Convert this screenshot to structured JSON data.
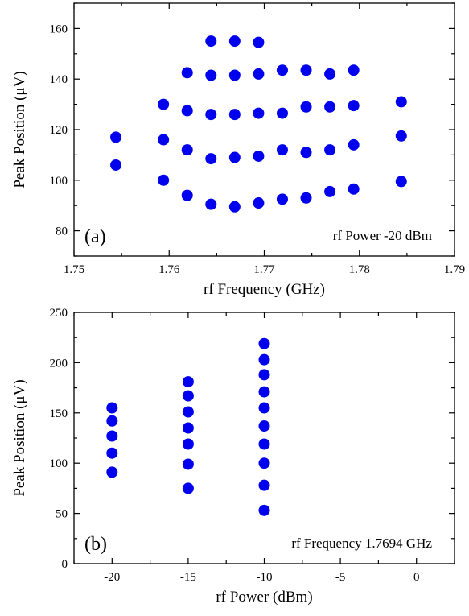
{
  "chart_data": [
    {
      "type": "scatter",
      "panel_label": "(a)",
      "annotation": "rf  Power -20 dBm",
      "xlabel": "rf Frequency (GHz)",
      "ylabel": "Peak Position (μV)",
      "xlim": [
        1.75,
        1.79
      ],
      "ylim": [
        70,
        170
      ],
      "xticks": [
        1.75,
        1.76,
        1.77,
        1.78,
        1.79
      ],
      "xtick_labels": [
        "1.75",
        "1.76",
        "1.77",
        "1.78",
        "1.79"
      ],
      "yticks": [
        80,
        100,
        120,
        140,
        160
      ],
      "ytick_labels": [
        "80",
        "100",
        "120",
        "140",
        "160"
      ],
      "color": "#0000ee",
      "points": [
        {
          "x": 1.7544,
          "y": 117
        },
        {
          "x": 1.7544,
          "y": 106
        },
        {
          "x": 1.7594,
          "y": 130
        },
        {
          "x": 1.7594,
          "y": 116
        },
        {
          "x": 1.7594,
          "y": 100
        },
        {
          "x": 1.7619,
          "y": 142.5
        },
        {
          "x": 1.7619,
          "y": 127.5
        },
        {
          "x": 1.7619,
          "y": 112
        },
        {
          "x": 1.7619,
          "y": 94
        },
        {
          "x": 1.7644,
          "y": 155
        },
        {
          "x": 1.7644,
          "y": 141.5
        },
        {
          "x": 1.7644,
          "y": 126
        },
        {
          "x": 1.7644,
          "y": 108.5
        },
        {
          "x": 1.7644,
          "y": 90.5
        },
        {
          "x": 1.7669,
          "y": 155
        },
        {
          "x": 1.7669,
          "y": 141.5
        },
        {
          "x": 1.7669,
          "y": 126
        },
        {
          "x": 1.7669,
          "y": 109
        },
        {
          "x": 1.7669,
          "y": 89.5
        },
        {
          "x": 1.7694,
          "y": 154.5
        },
        {
          "x": 1.7694,
          "y": 142
        },
        {
          "x": 1.7694,
          "y": 126.5
        },
        {
          "x": 1.7694,
          "y": 109.5
        },
        {
          "x": 1.7694,
          "y": 91
        },
        {
          "x": 1.7719,
          "y": 143.5
        },
        {
          "x": 1.7719,
          "y": 126.5
        },
        {
          "x": 1.7719,
          "y": 112
        },
        {
          "x": 1.7719,
          "y": 92.5
        },
        {
          "x": 1.7744,
          "y": 143.5
        },
        {
          "x": 1.7744,
          "y": 129
        },
        {
          "x": 1.7744,
          "y": 111
        },
        {
          "x": 1.7744,
          "y": 93
        },
        {
          "x": 1.7769,
          "y": 142
        },
        {
          "x": 1.7769,
          "y": 129
        },
        {
          "x": 1.7769,
          "y": 112
        },
        {
          "x": 1.7769,
          "y": 95.5
        },
        {
          "x": 1.7794,
          "y": 143.5
        },
        {
          "x": 1.7794,
          "y": 129.5
        },
        {
          "x": 1.7794,
          "y": 114
        },
        {
          "x": 1.7794,
          "y": 96.5
        },
        {
          "x": 1.7844,
          "y": 131
        },
        {
          "x": 1.7844,
          "y": 117.5
        },
        {
          "x": 1.7844,
          "y": 99.5
        }
      ]
    },
    {
      "type": "scatter",
      "panel_label": "(b)",
      "annotation": "rf Frequency 1.7694 GHz",
      "xlabel": "rf Power (dBm)",
      "ylabel": "Peak Position (μV)",
      "xlim": [
        -22.5,
        2.5
      ],
      "ylim": [
        0,
        250
      ],
      "xticks": [
        -20,
        -15,
        -10,
        -5,
        0
      ],
      "xtick_labels": [
        "-20",
        "-15",
        "-10",
        "-5",
        "0"
      ],
      "yticks": [
        0,
        50,
        100,
        150,
        200,
        250
      ],
      "ytick_labels": [
        "0",
        "50",
        "100",
        "150",
        "200",
        "250"
      ],
      "color": "#0000ee",
      "points": [
        {
          "x": -20,
          "y": 155
        },
        {
          "x": -20,
          "y": 142
        },
        {
          "x": -20,
          "y": 127
        },
        {
          "x": -20,
          "y": 110
        },
        {
          "x": -20,
          "y": 91
        },
        {
          "x": -15,
          "y": 181
        },
        {
          "x": -15,
          "y": 167
        },
        {
          "x": -15,
          "y": 151
        },
        {
          "x": -15,
          "y": 135
        },
        {
          "x": -15,
          "y": 119
        },
        {
          "x": -15,
          "y": 99
        },
        {
          "x": -15,
          "y": 75
        },
        {
          "x": -10,
          "y": 219
        },
        {
          "x": -10,
          "y": 203
        },
        {
          "x": -10,
          "y": 188
        },
        {
          "x": -10,
          "y": 171
        },
        {
          "x": -10,
          "y": 155
        },
        {
          "x": -10,
          "y": 137
        },
        {
          "x": -10,
          "y": 119
        },
        {
          "x": -10,
          "y": 100
        },
        {
          "x": -10,
          "y": 78
        },
        {
          "x": -10,
          "y": 53
        }
      ]
    }
  ]
}
